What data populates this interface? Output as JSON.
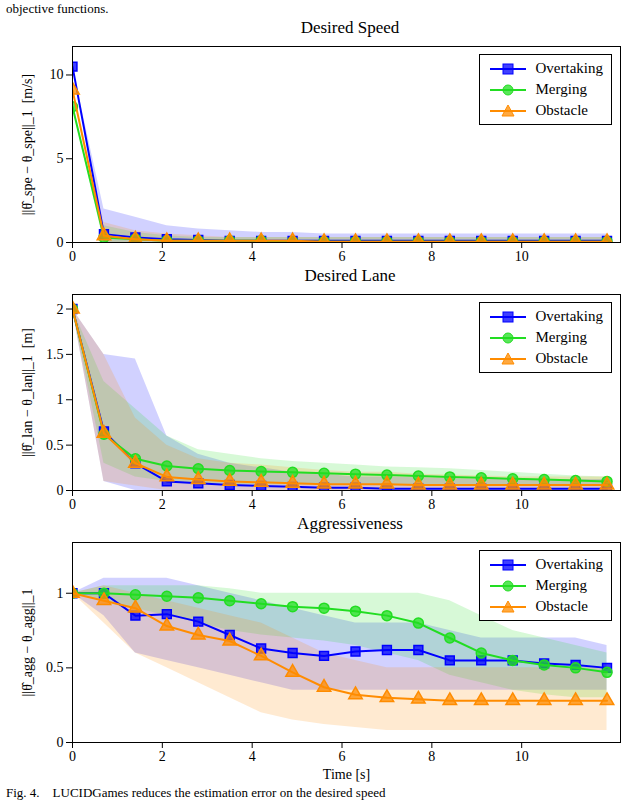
{
  "preceding_text": "objective functions.",
  "caption": "Fig. 4.    LUCIDGames reduces the estimation error on the desired speed",
  "chart_data": [
    {
      "type": "line",
      "title": "Desired Speed",
      "ylabel": "||θ̂_spe − θ_spe||_1  [m/s]",
      "x": [
        0,
        0.7,
        1.4,
        2.1,
        2.8,
        3.5,
        4.2,
        4.9,
        5.6,
        6.3,
        7.0,
        7.7,
        8.4,
        9.1,
        9.8,
        10.5,
        11.2,
        11.9
      ],
      "xlim": [
        0,
        12.2
      ],
      "xticks": [
        0,
        2,
        4,
        6,
        8,
        10
      ],
      "ylim": [
        0,
        11.7
      ],
      "yticks": [
        0,
        5,
        10
      ],
      "legend": "upper right",
      "series": [
        {
          "name": "Overtaking",
          "color": "#0000ff",
          "marker": "square",
          "values": [
            10.5,
            0.5,
            0.3,
            0.2,
            0.15,
            0.1,
            0.1,
            0.1,
            0.1,
            0.1,
            0.1,
            0.1,
            0.1,
            0.1,
            0.1,
            0.1,
            0.1,
            0.1
          ],
          "band_lower": [
            10.5,
            0,
            0,
            0,
            0,
            0,
            0,
            0,
            0,
            0,
            0,
            0,
            0,
            0,
            0,
            0,
            0,
            0
          ],
          "band_upper": [
            10.5,
            2.0,
            1.5,
            1.0,
            0.8,
            0.7,
            0.6,
            0.6,
            0.5,
            0.5,
            0.5,
            0.5,
            0.5,
            0.5,
            0.5,
            0.5,
            0.5,
            0.5
          ]
        },
        {
          "name": "Merging",
          "color": "#22dd22",
          "marker": "circle",
          "values": [
            8.1,
            0.3,
            0.2,
            0.1,
            0.1,
            0.1,
            0.1,
            0.05,
            0.05,
            0.05,
            0.05,
            0.05,
            0.05,
            0.05,
            0.05,
            0.05,
            0.05,
            0.05
          ],
          "band_lower": [
            8.1,
            0,
            0,
            0,
            0,
            0,
            0,
            0,
            0,
            0,
            0,
            0,
            0,
            0,
            0,
            0,
            0,
            0
          ],
          "band_upper": [
            8.1,
            1.0,
            0.6,
            0.4,
            0.3,
            0.3,
            0.3,
            0.3,
            0.3,
            0.3,
            0.3,
            0.3,
            0.3,
            0.3,
            0.3,
            0.3,
            0.3,
            0.3
          ]
        },
        {
          "name": "Obstacle",
          "color": "#ff8c00",
          "marker": "triangle",
          "values": [
            9.1,
            0.4,
            0.2,
            0.1,
            0.1,
            0.1,
            0.1,
            0.1,
            0.05,
            0.05,
            0.05,
            0.05,
            0.05,
            0.05,
            0.05,
            0.05,
            0.05,
            0.05
          ],
          "band_lower": [
            9.1,
            0,
            0,
            0,
            0,
            0,
            0,
            0,
            0,
            0,
            0,
            0,
            0,
            0,
            0,
            0,
            0,
            0
          ],
          "band_upper": [
            9.1,
            1.2,
            0.7,
            0.5,
            0.4,
            0.3,
            0.3,
            0.3,
            0.3,
            0.3,
            0.3,
            0.3,
            0.3,
            0.3,
            0.3,
            0.3,
            0.3,
            0.3
          ]
        }
      ]
    },
    {
      "type": "line",
      "title": "Desired Lane",
      "ylabel": "||θ̂_lan − θ_lan||_1  [m]",
      "x": [
        0,
        0.7,
        1.4,
        2.1,
        2.8,
        3.5,
        4.2,
        4.9,
        5.6,
        6.3,
        7.0,
        7.7,
        8.4,
        9.1,
        9.8,
        10.5,
        11.2,
        11.9
      ],
      "xlim": [
        0,
        12.2
      ],
      "xticks": [
        0,
        2,
        4,
        6,
        8,
        10
      ],
      "ylim": [
        0,
        2.16
      ],
      "yticks": [
        0,
        0.5,
        1,
        1.5,
        2
      ],
      "legend": "upper right",
      "series": [
        {
          "name": "Overtaking",
          "color": "#0000ff",
          "marker": "square",
          "values": [
            2,
            0.65,
            0.3,
            0.1,
            0.08,
            0.06,
            0.05,
            0.04,
            0.03,
            0.03,
            0.02,
            0.02,
            0.02,
            0.02,
            0.02,
            0.02,
            0.02,
            0.02
          ],
          "band_lower": [
            2,
            0.1,
            0,
            0,
            0,
            0,
            0,
            0,
            0,
            0,
            0,
            0,
            0,
            0,
            0,
            0,
            0,
            0
          ],
          "band_upper": [
            2,
            1.5,
            1.45,
            0.6,
            0.4,
            0.3,
            0.25,
            0.2,
            0.18,
            0.15,
            0.15,
            0.14,
            0.13,
            0.12,
            0.12,
            0.12,
            0.12,
            0.12
          ]
        },
        {
          "name": "Merging",
          "color": "#22dd22",
          "marker": "circle",
          "values": [
            2,
            0.62,
            0.35,
            0.27,
            0.24,
            0.22,
            0.21,
            0.2,
            0.19,
            0.18,
            0.17,
            0.16,
            0.15,
            0.14,
            0.13,
            0.12,
            0.11,
            0.1
          ],
          "band_lower": [
            2,
            0.3,
            0.15,
            0.1,
            0.08,
            0.07,
            0.06,
            0.06,
            0.06,
            0.06,
            0.05,
            0.05,
            0.05,
            0.05,
            0.05,
            0.05,
            0.05,
            0.05
          ],
          "band_upper": [
            2,
            1.2,
            0.9,
            0.6,
            0.45,
            0.4,
            0.35,
            0.32,
            0.3,
            0.28,
            0.26,
            0.25,
            0.24,
            0.22,
            0.2,
            0.18,
            0.16,
            0.15
          ]
        },
        {
          "name": "Obstacle",
          "color": "#ff8c00",
          "marker": "triangle",
          "values": [
            2,
            0.63,
            0.3,
            0.15,
            0.12,
            0.1,
            0.09,
            0.08,
            0.07,
            0.07,
            0.07,
            0.06,
            0.06,
            0.06,
            0.06,
            0.06,
            0.06,
            0.06
          ],
          "band_lower": [
            2,
            0.1,
            0.05,
            0,
            0,
            0,
            0,
            0,
            0,
            0,
            0,
            0,
            0,
            0,
            0,
            0,
            0,
            0
          ],
          "band_upper": [
            2,
            1.5,
            0.8,
            0.5,
            0.35,
            0.3,
            0.28,
            0.25,
            0.22,
            0.2,
            0.2,
            0.18,
            0.17,
            0.16,
            0.15,
            0.15,
            0.15,
            0.15
          ]
        }
      ]
    },
    {
      "type": "line",
      "title": "Aggressiveness",
      "ylabel": "||θ̂_agg − θ_agg||_1",
      "xlabel": "Time [s]",
      "x": [
        0,
        0.7,
        1.4,
        2.1,
        2.8,
        3.5,
        4.2,
        4.9,
        5.6,
        6.3,
        7.0,
        7.7,
        8.4,
        9.1,
        9.8,
        10.5,
        11.2,
        11.9
      ],
      "xlim": [
        0,
        12.2
      ],
      "xticks": [
        0,
        2,
        4,
        6,
        8,
        10
      ],
      "ylim": [
        0,
        1.34
      ],
      "yticks": [
        0,
        0.5,
        1
      ],
      "legend": "upper right",
      "series": [
        {
          "name": "Overtaking",
          "color": "#0000ff",
          "marker": "square",
          "values": [
            1,
            1,
            0.85,
            0.86,
            0.81,
            0.72,
            0.63,
            0.6,
            0.58,
            0.61,
            0.62,
            0.62,
            0.55,
            0.55,
            0.55,
            0.53,
            0.52,
            0.5
          ],
          "band_lower": [
            1,
            0.85,
            0.6,
            0.55,
            0.5,
            0.45,
            0.4,
            0.35,
            0.35,
            0.35,
            0.35,
            0.35,
            0.35,
            0.35,
            0.35,
            0.35,
            0.35,
            0.35
          ],
          "band_upper": [
            1,
            1.1,
            1.1,
            1.1,
            1.05,
            1.0,
            0.95,
            0.9,
            0.85,
            0.8,
            0.8,
            0.8,
            0.75,
            0.7,
            0.7,
            0.7,
            0.7,
            0.65
          ]
        },
        {
          "name": "Merging",
          "color": "#22dd22",
          "marker": "circle",
          "values": [
            1,
            1,
            0.99,
            0.98,
            0.97,
            0.95,
            0.93,
            0.91,
            0.9,
            0.88,
            0.85,
            0.8,
            0.7,
            0.6,
            0.55,
            0.52,
            0.5,
            0.47
          ],
          "band_lower": [
            1,
            0.95,
            0.9,
            0.85,
            0.8,
            0.75,
            0.72,
            0.7,
            0.68,
            0.65,
            0.6,
            0.55,
            0.45,
            0.4,
            0.35,
            0.32,
            0.3,
            0.3
          ],
          "band_upper": [
            1,
            1.05,
            1.05,
            1.05,
            1.05,
            1.03,
            1.0,
            1.0,
            1.0,
            1.0,
            1.0,
            1.0,
            0.95,
            0.85,
            0.75,
            0.7,
            0.65,
            0.6
          ]
        },
        {
          "name": "Obstacle",
          "color": "#ff8c00",
          "marker": "triangle",
          "values": [
            1,
            0.95,
            0.9,
            0.78,
            0.72,
            0.68,
            0.58,
            0.47,
            0.37,
            0.32,
            0.3,
            0.29,
            0.28,
            0.28,
            0.28,
            0.28,
            0.28,
            0.28
          ],
          "band_lower": [
            1,
            0.8,
            0.6,
            0.5,
            0.4,
            0.3,
            0.2,
            0.15,
            0.12,
            0.1,
            0.08,
            0.08,
            0.08,
            0.08,
            0.08,
            0.08,
            0.08,
            0.08
          ],
          "band_upper": [
            1,
            1.05,
            1.0,
            0.95,
            0.9,
            0.85,
            0.8,
            0.7,
            0.6,
            0.55,
            0.5,
            0.5,
            0.5,
            0.5,
            0.5,
            0.5,
            0.5,
            0.5
          ]
        }
      ]
    }
  ]
}
